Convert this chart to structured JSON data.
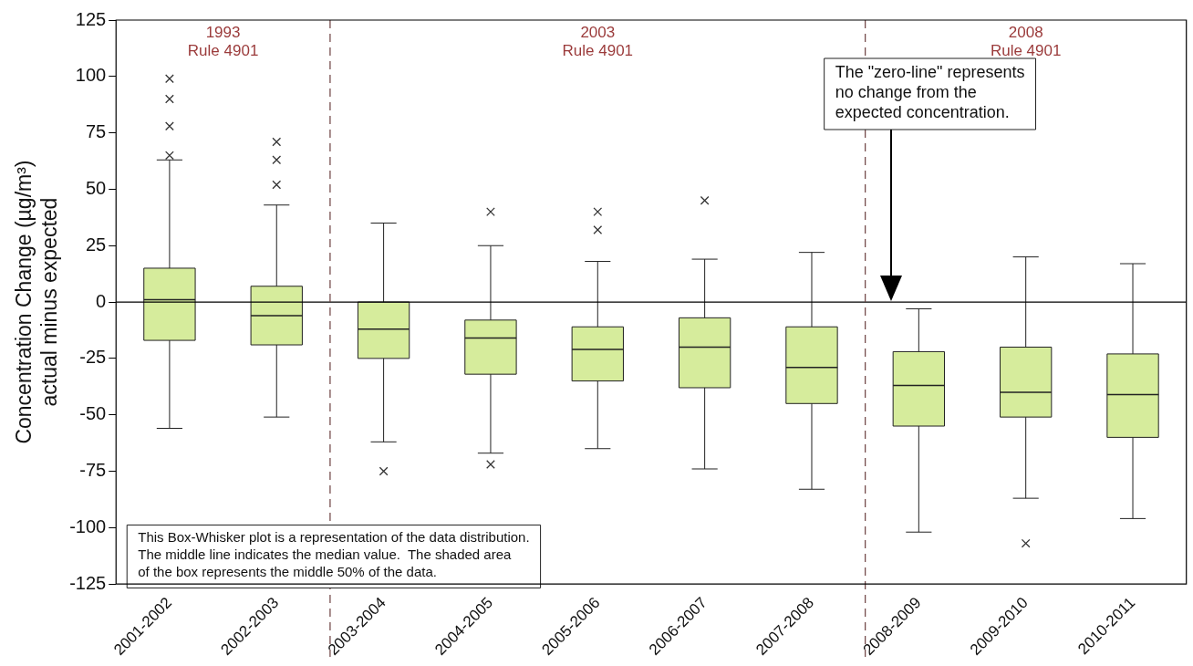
{
  "chart_data": {
    "type": "box",
    "ylabel": "Concentration Change (µg/m³)\nactual minus expected",
    "categories": [
      "2001-2002",
      "2002-2003",
      "2003-2004",
      "2004-2005",
      "2005-2006",
      "2006-2007",
      "2007-2008",
      "2008-2009",
      "2009-2010",
      "2010-2011"
    ],
    "boxes": [
      {
        "low": -56,
        "q1": -17,
        "median": 1,
        "q3": 15,
        "high": 63,
        "outliers": [
          99,
          90,
          78,
          65
        ]
      },
      {
        "low": -51,
        "q1": -19,
        "median": -6,
        "q3": 7,
        "high": 43,
        "outliers": [
          71,
          63,
          52
        ]
      },
      {
        "low": -62,
        "q1": -25,
        "median": -12,
        "q3": 0,
        "high": 35,
        "outliers": [
          -75
        ]
      },
      {
        "low": -67,
        "q1": -32,
        "median": -16,
        "q3": -8,
        "high": 25,
        "outliers": [
          40,
          -72
        ]
      },
      {
        "low": -65,
        "q1": -35,
        "median": -21,
        "q3": -11,
        "high": 18,
        "outliers": [
          40,
          32
        ]
      },
      {
        "low": -74,
        "q1": -38,
        "median": -20,
        "q3": -7,
        "high": 19,
        "outliers": [
          45
        ]
      },
      {
        "low": -83,
        "q1": -45,
        "median": -29,
        "q3": -11,
        "high": 22
      },
      {
        "low": -102,
        "q1": -55,
        "median": -37,
        "q3": -22,
        "high": -3
      },
      {
        "low": -87,
        "q1": -51,
        "median": -40,
        "q3": -20,
        "high": 20,
        "outliers": [
          -107
        ]
      },
      {
        "low": -96,
        "q1": -60,
        "median": -41,
        "q3": -23,
        "high": 17
      }
    ],
    "color": "#d6ec9c",
    "marker": "cross",
    "ylim": [
      -125,
      125
    ],
    "yticks": [
      -125,
      -100,
      -75,
      -50,
      -25,
      0,
      25,
      50,
      75,
      100,
      125
    ],
    "grid": false,
    "legend": false,
    "ref_lines": [
      {
        "axis": "y",
        "value": 0,
        "color": "#000000",
        "line_style": "solid"
      },
      {
        "axis": "x",
        "value": "2003-2004",
        "color": "#6b4040",
        "line_style": "dashed"
      },
      {
        "axis": "x",
        "value": "2008-2009",
        "color": "#6b4040",
        "line_style": "dashed"
      }
    ],
    "annotations": [
      "1993\nRule 4901",
      "2003\nRule 4901",
      "2008\nRule 4901",
      "This Box-Whisker plot is a representation of the data distribution.\nThe middle line indicates the median value.  The shaded area\nof the box represents the middle 50% of the data.",
      "The \"zero-line\" represents\nno change from the\nexpected concentration."
    ]
  }
}
